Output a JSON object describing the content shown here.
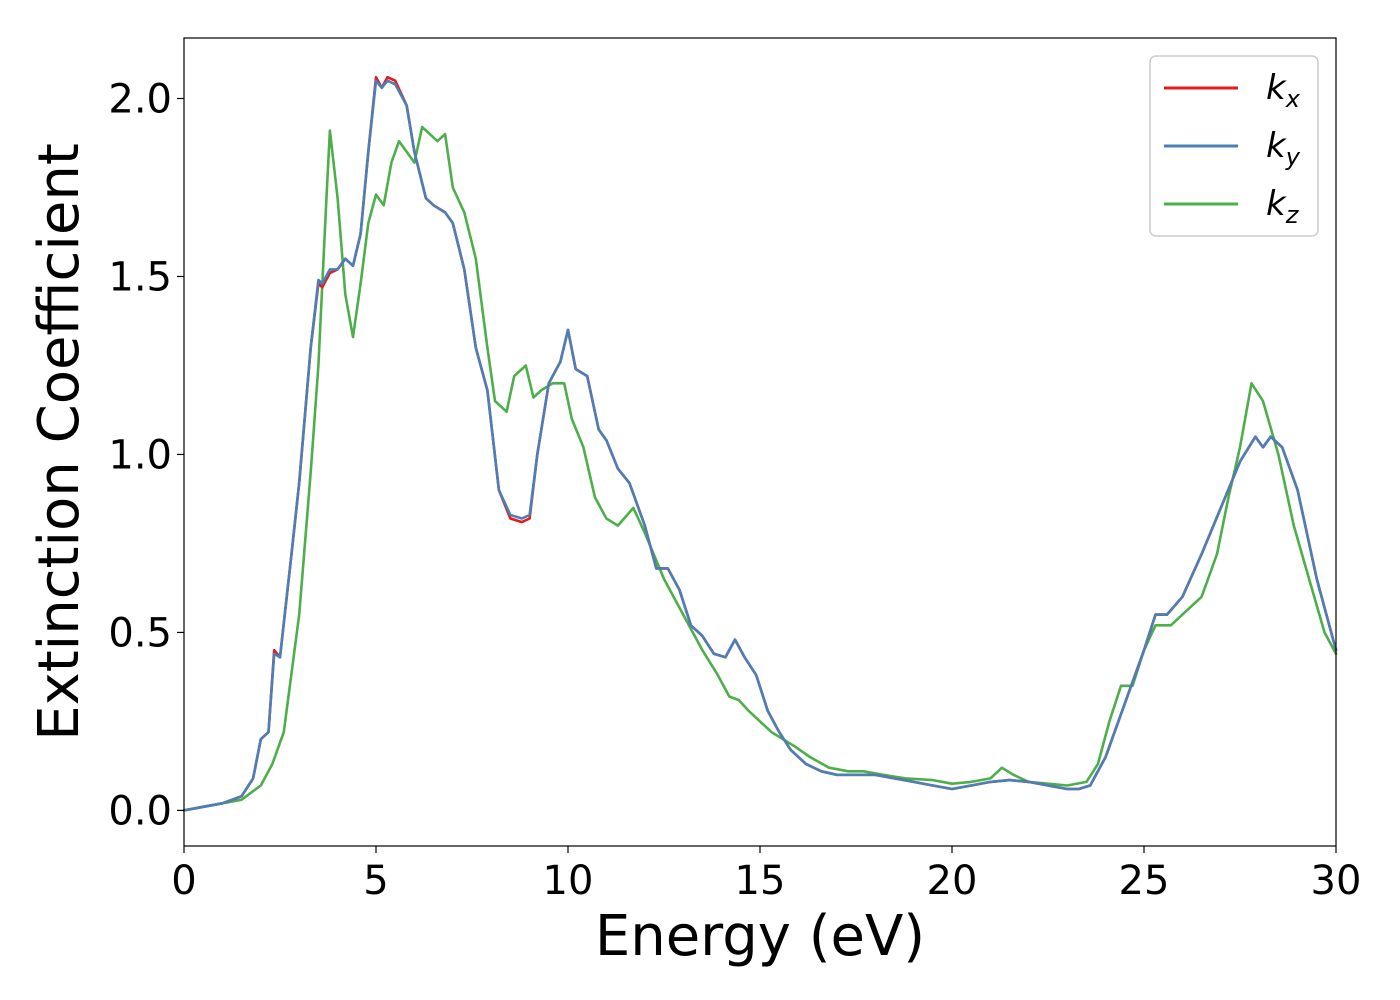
{
  "chart_data": {
    "type": "line",
    "title": "",
    "xlabel": "Energy (eV)",
    "ylabel": "Extinction Coefficient",
    "xlim": [
      0,
      30
    ],
    "ylim": [
      -0.1,
      2.17
    ],
    "xticks": [
      0,
      5,
      10,
      15,
      20,
      25,
      30
    ],
    "xtick_labels": [
      "0",
      "5",
      "10",
      "15",
      "20",
      "25",
      "30"
    ],
    "yticks": [
      0.0,
      0.5,
      1.0,
      1.5,
      2.0
    ],
    "ytick_labels": [
      "0.0",
      "0.5",
      "1.0",
      "1.5",
      "2.0"
    ],
    "grid": false,
    "legend_position": "top-right",
    "series": [
      {
        "name": "k",
        "subscript": "x",
        "color": "#e41a1c",
        "x": [
          0,
          0.5,
          1.0,
          1.5,
          1.8,
          2.0,
          2.2,
          2.35,
          2.5,
          2.8,
          3.0,
          3.3,
          3.5,
          3.6,
          3.8,
          4.0,
          4.2,
          4.4,
          4.6,
          4.8,
          5.0,
          5.15,
          5.3,
          5.5,
          5.8,
          6.0,
          6.3,
          6.5,
          6.8,
          7.0,
          7.3,
          7.6,
          7.9,
          8.2,
          8.5,
          8.8,
          9.0,
          9.2,
          9.5,
          9.8,
          10.0,
          10.2,
          10.5,
          10.8,
          11.0,
          11.3,
          11.6,
          12.0,
          12.3,
          12.6,
          12.9,
          13.2,
          13.5,
          13.8,
          14.1,
          14.35,
          14.6,
          14.9,
          15.2,
          15.5,
          15.8,
          16.2,
          16.6,
          17.0,
          17.5,
          18.0,
          18.5,
          19.0,
          19.5,
          20.0,
          20.5,
          21.0,
          21.5,
          22.0,
          22.5,
          23.0,
          23.3,
          23.6,
          24.0,
          24.5,
          25.0,
          25.3,
          25.6,
          26.0,
          26.5,
          27.0,
          27.5,
          27.9,
          28.1,
          28.3,
          28.6,
          29.0,
          29.5,
          30.0
        ],
        "y": [
          0.0,
          0.01,
          0.02,
          0.04,
          0.09,
          0.2,
          0.22,
          0.45,
          0.43,
          0.72,
          0.92,
          1.3,
          1.48,
          1.47,
          1.51,
          1.52,
          1.55,
          1.53,
          1.62,
          1.85,
          2.06,
          2.03,
          2.06,
          2.05,
          1.98,
          1.85,
          1.72,
          1.7,
          1.68,
          1.65,
          1.52,
          1.3,
          1.18,
          0.9,
          0.82,
          0.81,
          0.82,
          1.0,
          1.2,
          1.26,
          1.35,
          1.24,
          1.22,
          1.07,
          1.04,
          0.96,
          0.92,
          0.8,
          0.68,
          0.68,
          0.62,
          0.52,
          0.49,
          0.44,
          0.43,
          0.48,
          0.43,
          0.38,
          0.28,
          0.22,
          0.17,
          0.13,
          0.11,
          0.1,
          0.1,
          0.1,
          0.09,
          0.08,
          0.07,
          0.06,
          0.07,
          0.08,
          0.085,
          0.08,
          0.07,
          0.06,
          0.06,
          0.07,
          0.15,
          0.3,
          0.45,
          0.55,
          0.55,
          0.6,
          0.72,
          0.85,
          0.98,
          1.05,
          1.02,
          1.05,
          1.02,
          0.9,
          0.65,
          0.45
        ]
      },
      {
        "name": "k",
        "subscript": "y",
        "color": "#4a7fb7",
        "x": [
          0,
          0.5,
          1.0,
          1.5,
          1.8,
          2.0,
          2.2,
          2.35,
          2.5,
          2.8,
          3.0,
          3.3,
          3.5,
          3.6,
          3.8,
          4.0,
          4.2,
          4.4,
          4.6,
          4.8,
          5.0,
          5.15,
          5.3,
          5.5,
          5.8,
          6.0,
          6.3,
          6.5,
          6.8,
          7.0,
          7.3,
          7.6,
          7.9,
          8.2,
          8.5,
          8.8,
          9.0,
          9.2,
          9.5,
          9.8,
          10.0,
          10.2,
          10.5,
          10.8,
          11.0,
          11.3,
          11.6,
          12.0,
          12.3,
          12.6,
          12.9,
          13.2,
          13.5,
          13.8,
          14.1,
          14.35,
          14.6,
          14.9,
          15.2,
          15.5,
          15.8,
          16.2,
          16.6,
          17.0,
          17.5,
          18.0,
          18.5,
          19.0,
          19.5,
          20.0,
          20.5,
          21.0,
          21.5,
          22.0,
          22.5,
          23.0,
          23.3,
          23.6,
          24.0,
          24.5,
          25.0,
          25.3,
          25.6,
          26.0,
          26.5,
          27.0,
          27.5,
          27.9,
          28.1,
          28.3,
          28.6,
          29.0,
          29.5,
          30.0
        ],
        "y": [
          0.0,
          0.01,
          0.02,
          0.04,
          0.09,
          0.2,
          0.22,
          0.44,
          0.43,
          0.72,
          0.92,
          1.3,
          1.49,
          1.48,
          1.52,
          1.52,
          1.55,
          1.53,
          1.62,
          1.85,
          2.05,
          2.03,
          2.05,
          2.04,
          1.98,
          1.85,
          1.72,
          1.7,
          1.68,
          1.65,
          1.52,
          1.3,
          1.18,
          0.9,
          0.83,
          0.82,
          0.83,
          1.0,
          1.2,
          1.26,
          1.35,
          1.24,
          1.22,
          1.07,
          1.04,
          0.96,
          0.92,
          0.8,
          0.68,
          0.68,
          0.62,
          0.52,
          0.49,
          0.44,
          0.43,
          0.48,
          0.43,
          0.38,
          0.28,
          0.22,
          0.17,
          0.13,
          0.11,
          0.1,
          0.1,
          0.1,
          0.09,
          0.08,
          0.07,
          0.06,
          0.07,
          0.08,
          0.085,
          0.08,
          0.07,
          0.06,
          0.06,
          0.07,
          0.15,
          0.3,
          0.45,
          0.55,
          0.55,
          0.6,
          0.72,
          0.85,
          0.98,
          1.05,
          1.02,
          1.05,
          1.02,
          0.9,
          0.65,
          0.45
        ]
      },
      {
        "name": "k",
        "subscript": "z",
        "color": "#4daf4a",
        "x": [
          0,
          0.5,
          1.0,
          1.5,
          2.0,
          2.3,
          2.6,
          3.0,
          3.3,
          3.5,
          3.7,
          3.8,
          4.0,
          4.2,
          4.4,
          4.6,
          4.8,
          5.0,
          5.2,
          5.4,
          5.6,
          5.8,
          6.0,
          6.2,
          6.4,
          6.6,
          6.8,
          7.0,
          7.3,
          7.6,
          7.9,
          8.1,
          8.4,
          8.6,
          8.9,
          9.1,
          9.3,
          9.6,
          9.9,
          10.1,
          10.4,
          10.7,
          11.0,
          11.3,
          11.7,
          12.0,
          12.5,
          13.0,
          13.5,
          13.9,
          14.2,
          14.45,
          14.7,
          15.0,
          15.3,
          15.6,
          15.9,
          16.3,
          16.8,
          17.3,
          17.7,
          18.2,
          18.8,
          19.5,
          20.0,
          20.5,
          21.0,
          21.3,
          21.6,
          22.0,
          22.5,
          23.0,
          23.5,
          23.8,
          24.1,
          24.4,
          24.7,
          25.0,
          25.3,
          25.7,
          26.0,
          26.5,
          26.9,
          27.2,
          27.5,
          27.8,
          28.1,
          28.5,
          28.9,
          29.3,
          29.7,
          30.0
        ],
        "y": [
          0.0,
          0.01,
          0.02,
          0.03,
          0.07,
          0.13,
          0.22,
          0.55,
          0.95,
          1.25,
          1.7,
          1.91,
          1.72,
          1.45,
          1.33,
          1.48,
          1.65,
          1.73,
          1.7,
          1.82,
          1.88,
          1.85,
          1.82,
          1.92,
          1.9,
          1.88,
          1.9,
          1.75,
          1.68,
          1.55,
          1.3,
          1.15,
          1.12,
          1.22,
          1.25,
          1.16,
          1.18,
          1.2,
          1.2,
          1.1,
          1.02,
          0.88,
          0.82,
          0.8,
          0.85,
          0.78,
          0.65,
          0.55,
          0.45,
          0.38,
          0.32,
          0.31,
          0.28,
          0.25,
          0.22,
          0.2,
          0.18,
          0.15,
          0.12,
          0.11,
          0.11,
          0.1,
          0.09,
          0.085,
          0.075,
          0.08,
          0.09,
          0.12,
          0.1,
          0.08,
          0.075,
          0.07,
          0.08,
          0.13,
          0.25,
          0.35,
          0.35,
          0.45,
          0.52,
          0.52,
          0.55,
          0.6,
          0.72,
          0.88,
          1.02,
          1.2,
          1.15,
          1.0,
          0.8,
          0.65,
          0.5,
          0.44
        ]
      }
    ]
  }
}
